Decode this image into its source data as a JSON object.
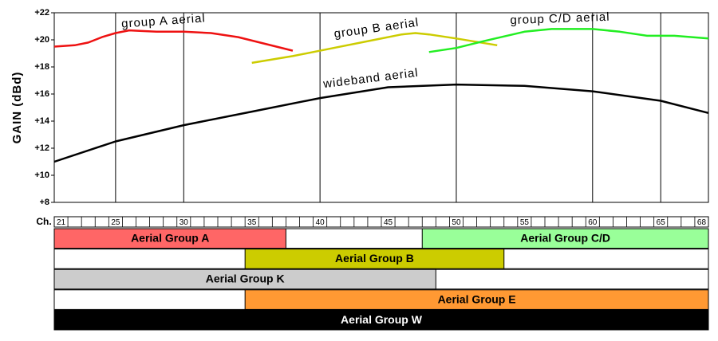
{
  "chart_data": {
    "type": "line",
    "y_label": "GAIN (dBd)",
    "x_label": "Ch.",
    "xlim": [
      20.5,
      68.5
    ],
    "ylim": [
      8,
      22
    ],
    "yticks": [
      {
        "value": 8,
        "label": "+8"
      },
      {
        "value": 10,
        "label": "+10"
      },
      {
        "value": 12,
        "label": "+12"
      },
      {
        "value": 14,
        "label": "+14"
      },
      {
        "value": 16,
        "label": "+16"
      },
      {
        "value": 18,
        "label": "+18"
      },
      {
        "value": 20,
        "label": "+20"
      },
      {
        "value": 22,
        "label": "+22"
      }
    ],
    "xticks": [
      21,
      25,
      30,
      35,
      40,
      45,
      50,
      55,
      60,
      65,
      68
    ],
    "xgrid": [
      25,
      30,
      40,
      50,
      60,
      65
    ],
    "series": [
      {
        "name": "group A aerial",
        "color": "#ee1111",
        "x": [
          20.5,
          22,
          23,
          24,
          25,
          26,
          28,
          30,
          32,
          34,
          36,
          38
        ],
        "values": [
          19.5,
          19.6,
          19.8,
          20.2,
          20.5,
          20.7,
          20.6,
          20.6,
          20.5,
          20.2,
          19.7,
          19.2
        ]
      },
      {
        "name": "group B aerial",
        "color": "#cccc00",
        "x": [
          35,
          38,
          41,
          44,
          46,
          47,
          48,
          50,
          53
        ],
        "values": [
          18.3,
          18.8,
          19.4,
          20.0,
          20.4,
          20.5,
          20.4,
          20.1,
          19.6
        ]
      },
      {
        "name": "group C/D aerial",
        "color": "#22ee22",
        "x": [
          48,
          50,
          52,
          55,
          57,
          60,
          62,
          64,
          66,
          68.5
        ],
        "values": [
          19.1,
          19.4,
          19.9,
          20.6,
          20.8,
          20.8,
          20.6,
          20.3,
          20.3,
          20.1
        ]
      },
      {
        "name": "wideband aerial",
        "color": "#000000",
        "x": [
          20.5,
          25,
          30,
          35,
          40,
          45,
          50,
          55,
          60,
          65,
          68.5
        ],
        "values": [
          11.0,
          12.5,
          13.7,
          14.7,
          15.7,
          16.5,
          16.7,
          16.6,
          16.2,
          15.5,
          14.6
        ]
      }
    ],
    "groups": [
      [
        {
          "name": "Aerial Group A",
          "from": 21,
          "to": 37,
          "color": "#ff6666"
        },
        {
          "name": "Aerial Group C/D",
          "from": 48,
          "to": 68,
          "color": "#99ff99"
        }
      ],
      [
        {
          "name": "Aerial Group B",
          "from": 35,
          "to": 53,
          "color": "#cccc00"
        }
      ],
      [
        {
          "name": "Aerial Group K",
          "from": 21,
          "to": 48,
          "color": "#cccccc"
        }
      ],
      [
        {
          "name": "Aerial Group E",
          "from": 35,
          "to": 68,
          "color": "#ff9933"
        }
      ],
      [
        {
          "name": "Aerial Group W",
          "from": 21,
          "to": 68,
          "color": "#000000"
        }
      ]
    ]
  }
}
